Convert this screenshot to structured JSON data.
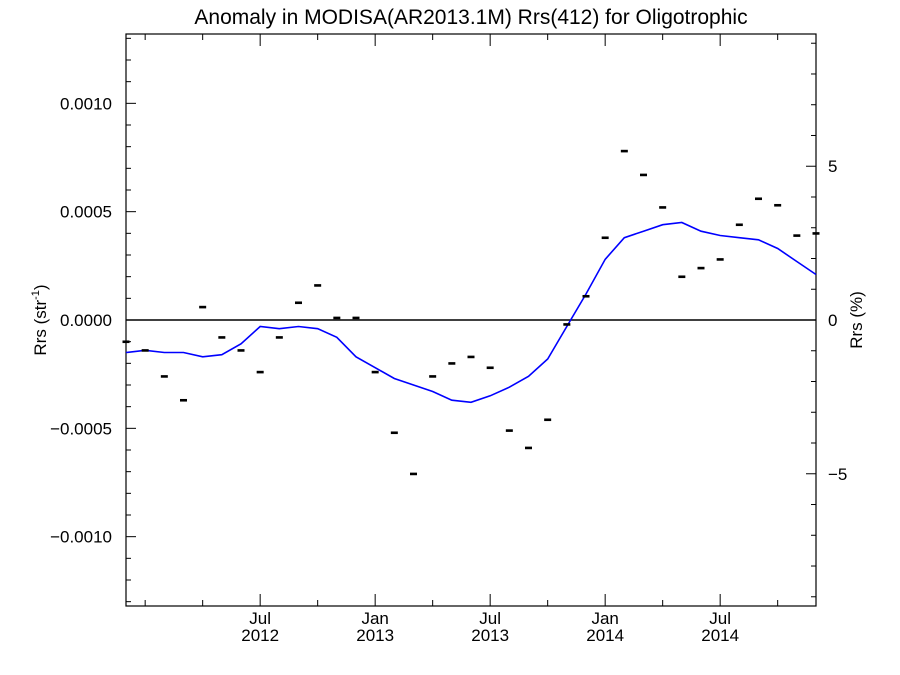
{
  "chart_data": {
    "type": "line",
    "title": "Anomaly in MODISA(AR2013.1M) Rrs(412) for Oligotrophic",
    "ylabel_left": {
      "text": "Rrs (str",
      "sup": "-1",
      "close": ")"
    },
    "ylabel_right": "Rrs (%)",
    "x_range": [
      "2011-12",
      "2014-12"
    ],
    "ylim_left": [
      -0.00132,
      0.00132
    ],
    "ylim_right": [
      -9.3,
      9.3
    ],
    "left_ticks": [
      {
        "value": 0.001,
        "label": "0.0010"
      },
      {
        "value": 0.0005,
        "label": "0.0005"
      },
      {
        "value": 0,
        "label": "0.0000"
      },
      {
        "value": -0.0005,
        "label": "−0.0005"
      },
      {
        "value": -0.001,
        "label": "−0.0010"
      }
    ],
    "right_ticks": [
      {
        "value": 5,
        "label": "5"
      },
      {
        "value": 0,
        "label": "0"
      },
      {
        "value": -5,
        "label": "−5"
      }
    ],
    "x_ticks": [
      {
        "date": "2012-07",
        "month": "Jul",
        "year": "2012"
      },
      {
        "date": "2013-01",
        "month": "Jan",
        "year": "2013"
      },
      {
        "date": "2013-07",
        "month": "Jul",
        "year": "2013"
      },
      {
        "date": "2014-01",
        "month": "Jan",
        "year": "2014"
      },
      {
        "date": "2014-07",
        "month": "Jul",
        "year": "2014"
      }
    ],
    "zero_line": true,
    "grid": false,
    "series": [
      {
        "style": "markers",
        "color": "#000000",
        "x": [
          "2011-12",
          "2012-01",
          "2012-02",
          "2012-03",
          "2012-04",
          "2012-05",
          "2012-06",
          "2012-07",
          "2012-08",
          "2012-09",
          "2012-10",
          "2012-11",
          "2012-12",
          "2013-01",
          "2013-02",
          "2013-03",
          "2013-04",
          "2013-05",
          "2013-06",
          "2013-07",
          "2013-08",
          "2013-09",
          "2013-10",
          "2013-11",
          "2013-12",
          "2014-01",
          "2014-02",
          "2014-03",
          "2014-04",
          "2014-05",
          "2014-06",
          "2014-07",
          "2014-08",
          "2014-09",
          "2014-10",
          "2014-11",
          "2014-12"
        ],
        "y": [
          -0.0001,
          -0.00014,
          -0.00026,
          -0.00037,
          6e-05,
          -8e-05,
          -0.00014,
          -0.00024,
          -8e-05,
          8e-05,
          0.00016,
          1e-05,
          1e-05,
          -0.00024,
          -0.00052,
          -0.00071,
          -0.00026,
          -0.0002,
          -0.00017,
          -0.00022,
          -0.00051,
          -0.00059,
          -0.00046,
          -2e-05,
          0.00011,
          0.00038,
          0.00078,
          0.00067,
          0.00052,
          0.0002,
          0.00024,
          0.00028,
          0.00044,
          0.00056,
          0.00053,
          0.00039,
          0.0004
        ]
      },
      {
        "style": "line",
        "color": "#0000ff",
        "x": [
          "2011-12",
          "2012-01",
          "2012-02",
          "2012-03",
          "2012-04",
          "2012-05",
          "2012-06",
          "2012-07",
          "2012-08",
          "2012-09",
          "2012-10",
          "2012-11",
          "2012-12",
          "2013-01",
          "2013-02",
          "2013-03",
          "2013-04",
          "2013-05",
          "2013-06",
          "2013-07",
          "2013-08",
          "2013-09",
          "2013-10",
          "2013-11",
          "2013-12",
          "2014-01",
          "2014-02",
          "2014-03",
          "2014-04",
          "2014-05",
          "2014-06",
          "2014-07",
          "2014-08",
          "2014-09",
          "2014-10",
          "2014-11",
          "2014-12"
        ],
        "y": [
          -0.00015,
          -0.00014,
          -0.00015,
          -0.00015,
          -0.00017,
          -0.00016,
          -0.00011,
          -3e-05,
          -4e-05,
          -3e-05,
          -4e-05,
          -8e-05,
          -0.00017,
          -0.00022,
          -0.00027,
          -0.0003,
          -0.00033,
          -0.00037,
          -0.00038,
          -0.00035,
          -0.00031,
          -0.00026,
          -0.00018,
          -3e-05,
          0.00012,
          0.00028,
          0.00038,
          0.00041,
          0.00044,
          0.00045,
          0.00041,
          0.00039,
          0.00038,
          0.00037,
          0.00033,
          0.00027,
          0.00021
        ]
      }
    ]
  }
}
